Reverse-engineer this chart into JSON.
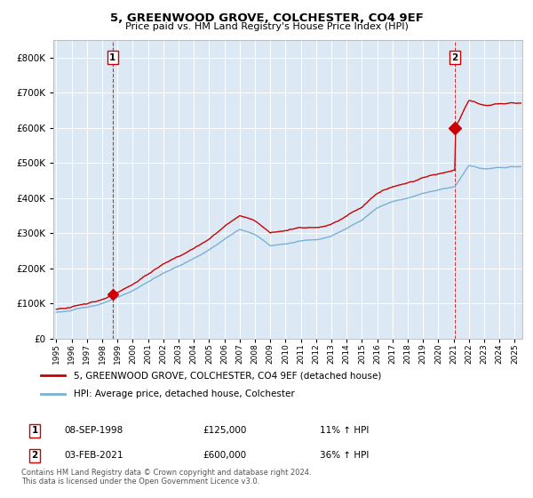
{
  "title": "5, GREENWOOD GROVE, COLCHESTER, CO4 9EF",
  "subtitle": "Price paid vs. HM Land Registry's House Price Index (HPI)",
  "sale1_year": 1998.69,
  "sale1_price": 125000,
  "sale1_label": "1",
  "sale1_date": "08-SEP-1998",
  "sale1_hpi": "11% ↑ HPI",
  "sale2_year": 2021.09,
  "sale2_price": 600000,
  "sale2_label": "2",
  "sale2_date": "03-FEB-2021",
  "sale2_hpi": "36% ↑ HPI",
  "legend_property": "5, GREENWOOD GROVE, COLCHESTER, CO4 9EF (detached house)",
  "legend_hpi": "HPI: Average price, detached house, Colchester",
  "footnote1": "Contains HM Land Registry data © Crown copyright and database right 2024.",
  "footnote2": "This data is licensed under the Open Government Licence v3.0.",
  "property_color": "#cc0000",
  "hpi_color": "#7ab0d4",
  "marker_color": "#cc0000",
  "vline_color": "#cc0000",
  "background_color": "#ffffff",
  "plot_bg_color": "#dce9f5",
  "grid_color": "#ffffff",
  "ylim_min": 0,
  "ylim_max": 850000,
  "xlim_min": 1994.8,
  "xlim_max": 2025.5
}
